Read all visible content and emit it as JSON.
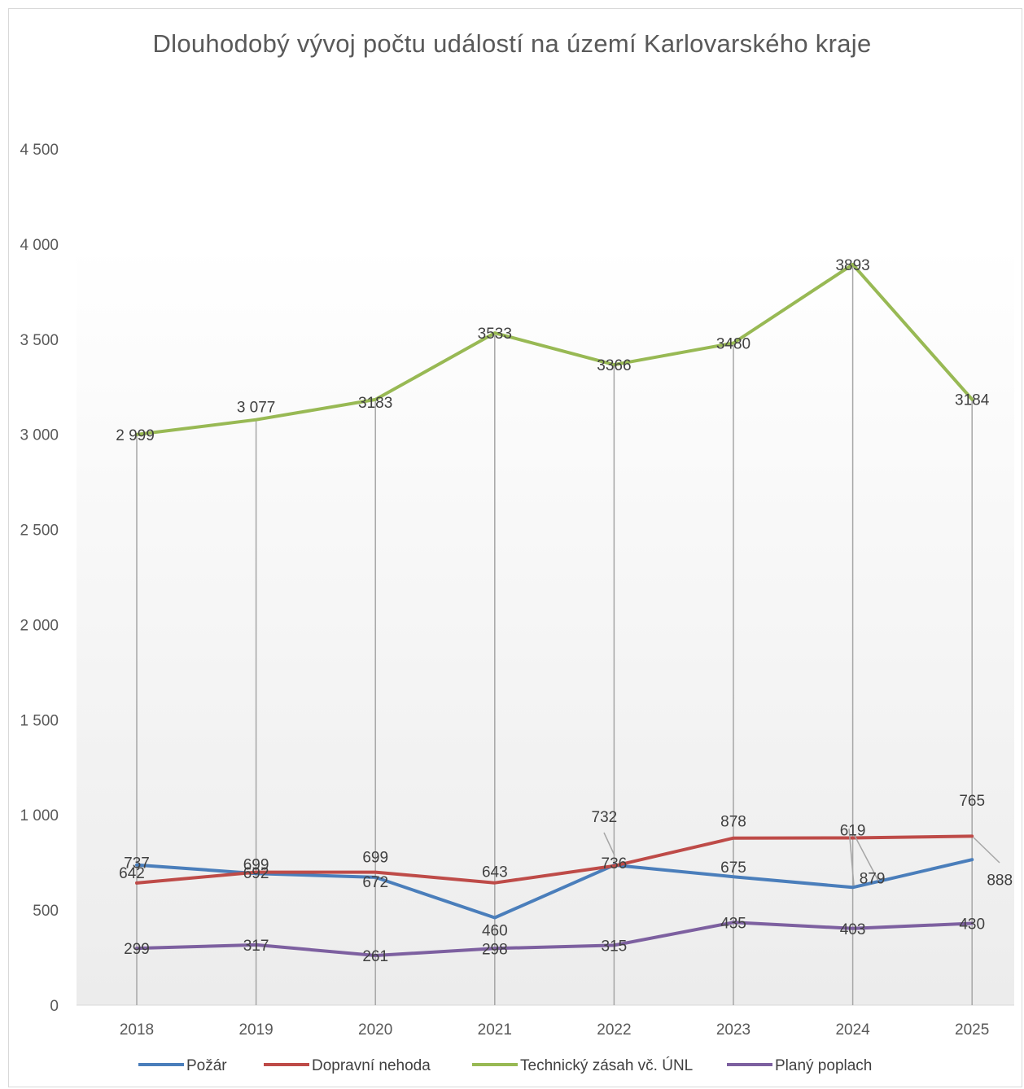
{
  "chart_data": {
    "type": "line",
    "title": "Dlouhodobý vývoj počtu událostí na území Karlovarského kraje",
    "categories": [
      "2018",
      "2019",
      "2020",
      "2021",
      "2022",
      "2023",
      "2024",
      "2025"
    ],
    "ylim": [
      0,
      4500
    ],
    "yticks": [
      0,
      500,
      1000,
      1500,
      2000,
      2500,
      3000,
      3500,
      4000,
      4500
    ],
    "ytick_labels": [
      "0",
      "500",
      "1 000",
      "1 500",
      "2 000",
      "2 500",
      "3 000",
      "3 500",
      "4 000",
      "4 500"
    ],
    "series": [
      {
        "name": "Požár",
        "color": "#4a7ebb",
        "values": [
          737,
          692,
          672,
          460,
          736,
          675,
          619,
          765
        ],
        "labels": [
          "737",
          "692",
          "672",
          "460",
          "736",
          "675",
          "619",
          "765"
        ]
      },
      {
        "name": "Dopravní nehoda",
        "color": "#be4b48",
        "values": [
          642,
          699,
          699,
          643,
          732,
          878,
          879,
          888
        ],
        "labels": [
          "642",
          "699",
          "699",
          "643",
          "732",
          "878",
          "879",
          "888"
        ]
      },
      {
        "name": "Technický zásah vč. ÚNL",
        "color": "#98b954",
        "values": [
          2999,
          3077,
          3183,
          3533,
          3366,
          3480,
          3893,
          3184
        ],
        "labels": [
          "2 999",
          "3 077",
          "3183",
          "3533",
          "3366",
          "3480",
          "3893",
          "3184"
        ]
      },
      {
        "name": "Planý poplach",
        "color": "#7d60a0",
        "values": [
          299,
          317,
          261,
          298,
          315,
          435,
          403,
          430
        ],
        "labels": [
          "299",
          "317",
          "261",
          "298",
          "315",
          "435",
          "403",
          "430"
        ]
      }
    ],
    "drop_lines": true,
    "grid": false,
    "legend": "bottom"
  }
}
